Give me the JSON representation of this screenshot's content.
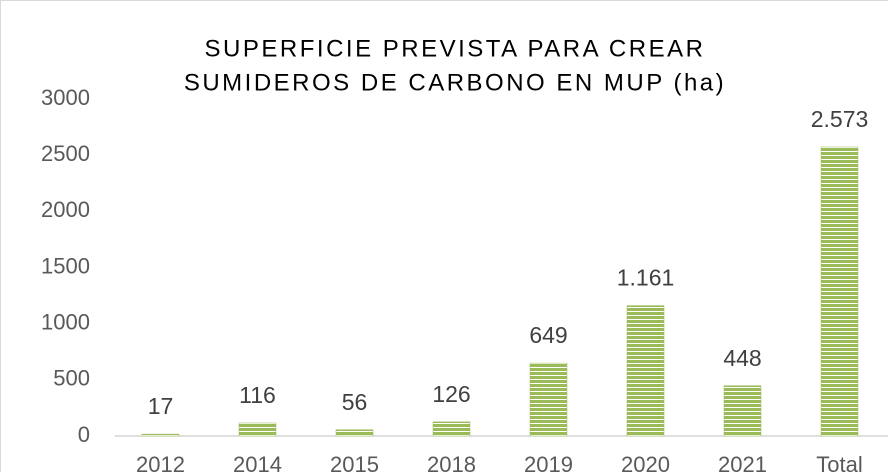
{
  "chart_data": {
    "type": "bar",
    "title": [
      "SUPERFICIE PREVISTA PARA CREAR",
      "SUMIDEROS DE CARBONO EN MUP (ha)"
    ],
    "categories": [
      "2012",
      "2014",
      "2015",
      "2018",
      "2019",
      "2020",
      "2021",
      "Total"
    ],
    "values": [
      17,
      116,
      56,
      126,
      649,
      1161,
      448,
      2573
    ],
    "value_labels": [
      "17",
      "116",
      "56",
      "126",
      "649",
      "1.161",
      "448",
      "2.573"
    ],
    "color": "#9bbb59",
    "ylim": [
      0,
      3000
    ],
    "yticks": [
      0,
      500,
      1000,
      1500,
      2000,
      2500,
      3000
    ],
    "grid": false
  }
}
